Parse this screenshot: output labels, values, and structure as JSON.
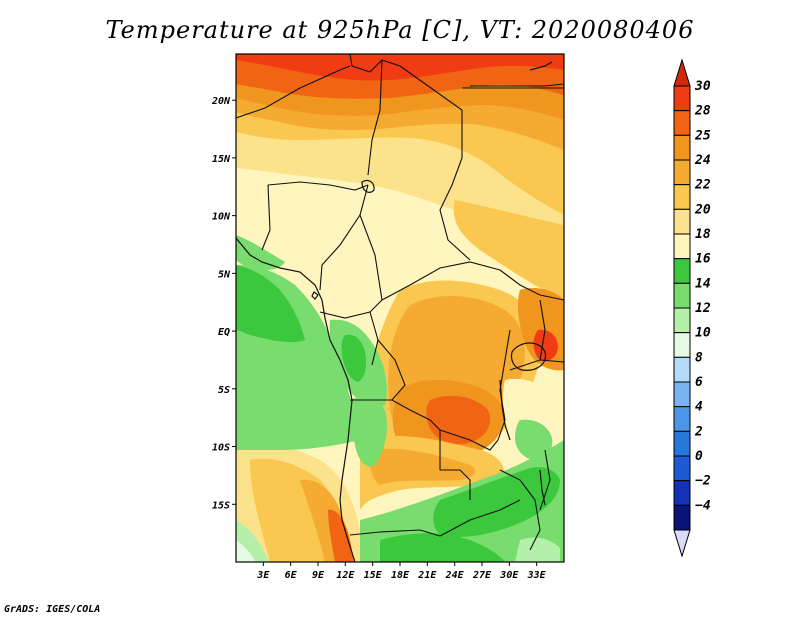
{
  "title": "Temperature at 925hPa [C], VT: 2020080406",
  "credit": "GrADS: IGES/COLA",
  "map": {
    "lon_range": [
      0,
      36
    ],
    "lat_range": [
      -20,
      24
    ],
    "lon_ticks": [
      {
        "value": 3,
        "label": "3E"
      },
      {
        "value": 6,
        "label": "6E"
      },
      {
        "value": 9,
        "label": "9E"
      },
      {
        "value": 12,
        "label": "12E"
      },
      {
        "value": 15,
        "label": "15E"
      },
      {
        "value": 18,
        "label": "18E"
      },
      {
        "value": 21,
        "label": "21E"
      },
      {
        "value": 24,
        "label": "24E"
      },
      {
        "value": 27,
        "label": "27E"
      },
      {
        "value": 30,
        "label": "30E"
      },
      {
        "value": 33,
        "label": "33E"
      }
    ],
    "lat_ticks": [
      {
        "value": 20,
        "label": "20N"
      },
      {
        "value": 15,
        "label": "15N"
      },
      {
        "value": 10,
        "label": "10N"
      },
      {
        "value": 5,
        "label": "5N"
      },
      {
        "value": 0,
        "label": "EQ"
      },
      {
        "value": -5,
        "label": "5S"
      },
      {
        "value": -10,
        "label": "10S"
      },
      {
        "value": -15,
        "label": "15S"
      }
    ]
  },
  "colorbar": {
    "levels": [
      {
        "label": "30",
        "color": "#f03c14"
      },
      {
        "label": "28",
        "color": "#f06414"
      },
      {
        "label": "25",
        "color": "#f0961e"
      },
      {
        "label": "24",
        "color": "#f5aa32"
      },
      {
        "label": "22",
        "color": "#fac850"
      },
      {
        "label": "20",
        "color": "#fde28c"
      },
      {
        "label": "18",
        "color": "#fff5be"
      },
      {
        "label": "16",
        "color": "#3cc83c"
      },
      {
        "label": "14",
        "color": "#78dc6e"
      },
      {
        "label": "12",
        "color": "#b4f0aa"
      },
      {
        "label": "10",
        "color": "#e6fae6"
      },
      {
        "label": "8",
        "color": "#b4dcfa"
      },
      {
        "label": "6",
        "color": "#78b4f0"
      },
      {
        "label": "4",
        "color": "#4b96e6"
      },
      {
        "label": "2",
        "color": "#2878dc"
      },
      {
        "label": "0",
        "color": "#1e5ad2"
      },
      {
        "label": "−2",
        "color": "#1432b4"
      },
      {
        "label": "−4",
        "color": "#0a1478"
      }
    ],
    "top_color": "#d2280a",
    "bottom_color": "#dcdcfa"
  }
}
